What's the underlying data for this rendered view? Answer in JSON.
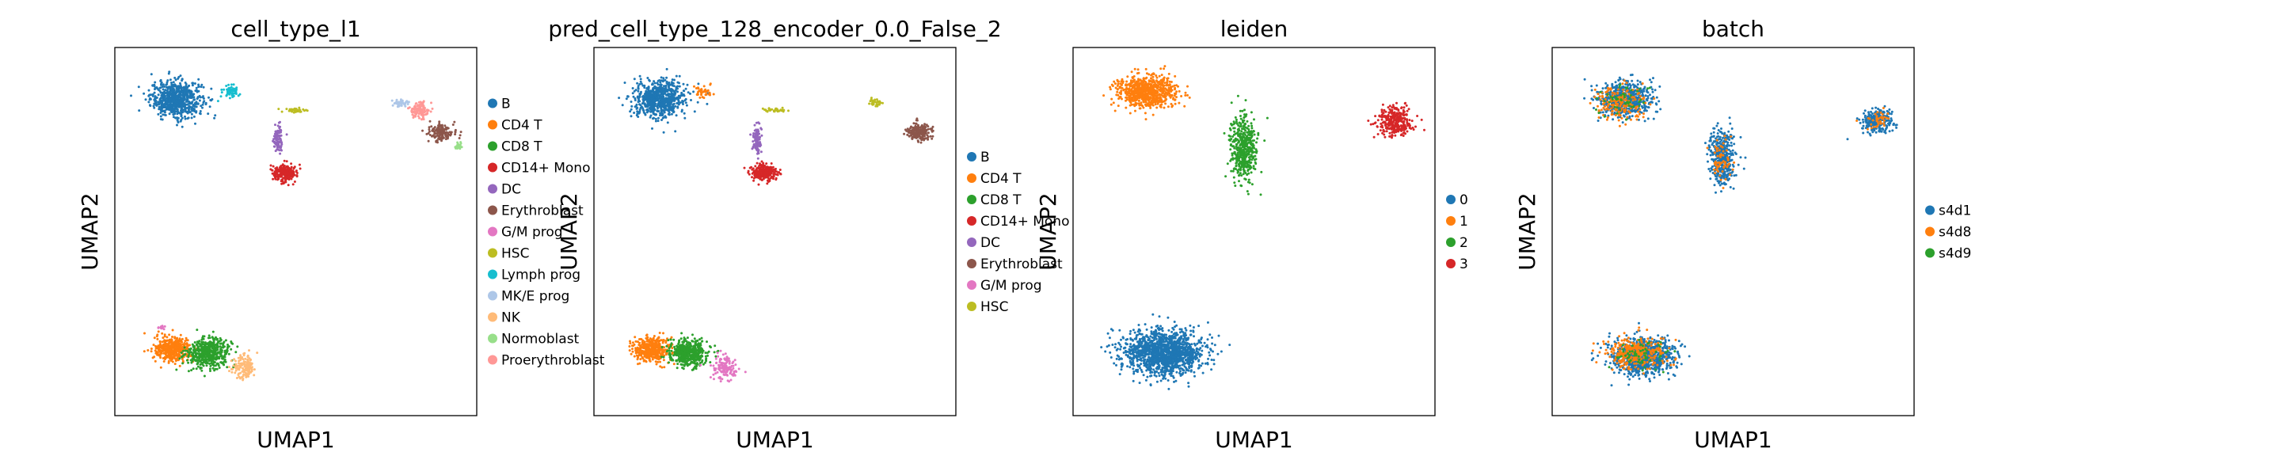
{
  "chart_data": [
    {
      "type": "scatter",
      "title": "cell_type_l1",
      "xlabel": "UMAP1",
      "ylabel": "UMAP2",
      "xlim": [
        0,
        10
      ],
      "ylim": [
        0,
        10
      ],
      "grid": false,
      "legend": "right",
      "legend_entries": [
        "B",
        "CD4 T",
        "CD8 T",
        "CD14+ Mono",
        "DC",
        "Erythroblast",
        "G/M prog",
        "HSC",
        "Lymph prog",
        "MK/E prog",
        "NK",
        "Normoblast",
        "Proerythroblast"
      ],
      "colors": [
        "#1f77b4",
        "#ff7f0e",
        "#2ca02c",
        "#d62728",
        "#9467bd",
        "#8c564b",
        "#e377c2",
        "#bcbd22",
        "#17becf",
        "#aec7e8",
        "#ffbb78",
        "#98df8a",
        "#ff9896"
      ],
      "series": [
        {
          "name": "B",
          "clusters": [
            {
              "cx": 1.7,
              "cy": 8.6,
              "sx": 0.65,
              "sy": 0.45,
              "n": 700
            }
          ]
        },
        {
          "name": "CD4 T",
          "clusters": [
            {
              "cx": 1.6,
              "cy": 1.8,
              "sx": 0.45,
              "sy": 0.3,
              "n": 420
            }
          ]
        },
        {
          "name": "CD8 T",
          "clusters": [
            {
              "cx": 2.6,
              "cy": 1.7,
              "sx": 0.55,
              "sy": 0.35,
              "n": 480
            }
          ]
        },
        {
          "name": "CD14+ Mono",
          "clusters": [
            {
              "cx": 4.7,
              "cy": 6.6,
              "sx": 0.3,
              "sy": 0.2,
              "n": 260
            }
          ]
        },
        {
          "name": "DC",
          "clusters": [
            {
              "cx": 4.5,
              "cy": 7.5,
              "sx": 0.12,
              "sy": 0.35,
              "n": 90
            }
          ]
        },
        {
          "name": "Erythroblast",
          "clusters": [
            {
              "cx": 9.0,
              "cy": 7.7,
              "sx": 0.3,
              "sy": 0.22,
              "n": 160
            }
          ]
        },
        {
          "name": "G/M prog",
          "clusters": [
            {
              "cx": 1.3,
              "cy": 2.4,
              "sx": 0.1,
              "sy": 0.05,
              "n": 15
            }
          ]
        },
        {
          "name": "HSC",
          "clusters": [
            {
              "cx": 5.0,
              "cy": 8.3,
              "sx": 0.3,
              "sy": 0.06,
              "n": 40
            }
          ]
        },
        {
          "name": "Lymph prog",
          "clusters": [
            {
              "cx": 3.2,
              "cy": 8.8,
              "sx": 0.2,
              "sy": 0.15,
              "n": 60
            }
          ]
        },
        {
          "name": "MK/E prog",
          "clusters": [
            {
              "cx": 7.9,
              "cy": 8.5,
              "sx": 0.25,
              "sy": 0.1,
              "n": 40
            }
          ]
        },
        {
          "name": "NK",
          "clusters": [
            {
              "cx": 3.6,
              "cy": 1.3,
              "sx": 0.3,
              "sy": 0.3,
              "n": 140
            }
          ]
        },
        {
          "name": "Normoblast",
          "clusters": [
            {
              "cx": 9.5,
              "cy": 7.3,
              "sx": 0.1,
              "sy": 0.1,
              "n": 25
            }
          ]
        },
        {
          "name": "Proerythroblast",
          "clusters": [
            {
              "cx": 8.4,
              "cy": 8.3,
              "sx": 0.25,
              "sy": 0.2,
              "n": 120
            }
          ]
        }
      ]
    },
    {
      "type": "scatter",
      "title": "pred_cell_type_128_encoder_0.0_False_2",
      "xlabel": "UMAP1",
      "ylabel": "UMAP2",
      "xlim": [
        0,
        10
      ],
      "ylim": [
        0,
        10
      ],
      "grid": false,
      "legend": "right",
      "legend_entries": [
        "B",
        "CD4 T",
        "CD8 T",
        "CD14+ Mono",
        "DC",
        "Erythroblast",
        "G/M prog",
        "HSC"
      ],
      "colors": [
        "#1f77b4",
        "#ff7f0e",
        "#2ca02c",
        "#d62728",
        "#9467bd",
        "#8c564b",
        "#e377c2",
        "#bcbd22"
      ],
      "series": [
        {
          "name": "B",
          "clusters": [
            {
              "cx": 1.8,
              "cy": 8.6,
              "sx": 0.65,
              "sy": 0.45,
              "n": 700
            }
          ]
        },
        {
          "name": "CD4 T",
          "clusters": [
            {
              "cx": 1.6,
              "cy": 1.8,
              "sx": 0.45,
              "sy": 0.3,
              "n": 420
            },
            {
              "cx": 3.0,
              "cy": 8.8,
              "sx": 0.2,
              "sy": 0.15,
              "n": 40
            }
          ]
        },
        {
          "name": "CD8 T",
          "clusters": [
            {
              "cx": 2.6,
              "cy": 1.7,
              "sx": 0.5,
              "sy": 0.35,
              "n": 480
            }
          ]
        },
        {
          "name": "CD14+ Mono",
          "clusters": [
            {
              "cx": 4.7,
              "cy": 6.6,
              "sx": 0.3,
              "sy": 0.2,
              "n": 260
            }
          ]
        },
        {
          "name": "DC",
          "clusters": [
            {
              "cx": 4.5,
              "cy": 7.5,
              "sx": 0.12,
              "sy": 0.35,
              "n": 90
            }
          ]
        },
        {
          "name": "Erythroblast",
          "clusters": [
            {
              "cx": 9.0,
              "cy": 7.7,
              "sx": 0.3,
              "sy": 0.22,
              "n": 200
            }
          ]
        },
        {
          "name": "G/M prog",
          "clusters": [
            {
              "cx": 3.6,
              "cy": 1.3,
              "sx": 0.3,
              "sy": 0.3,
              "n": 140
            }
          ]
        },
        {
          "name": "HSC",
          "clusters": [
            {
              "cx": 5.0,
              "cy": 8.3,
              "sx": 0.3,
              "sy": 0.06,
              "n": 40
            },
            {
              "cx": 7.8,
              "cy": 8.5,
              "sx": 0.2,
              "sy": 0.1,
              "n": 30
            }
          ]
        }
      ]
    },
    {
      "type": "scatter",
      "title": "leiden",
      "xlabel": "UMAP1",
      "ylabel": "UMAP2",
      "xlim": [
        0,
        10
      ],
      "ylim": [
        0,
        10
      ],
      "grid": false,
      "legend": "right",
      "legend_entries": [
        "0",
        "1",
        "2",
        "3"
      ],
      "colors": [
        "#1f77b4",
        "#ff7f0e",
        "#2ca02c",
        "#d62728"
      ],
      "series": [
        {
          "name": "0",
          "clusters": [
            {
              "cx": 2.5,
              "cy": 1.7,
              "sx": 1.0,
              "sy": 0.55,
              "n": 1400
            }
          ]
        },
        {
          "name": "1",
          "clusters": [
            {
              "cx": 2.0,
              "cy": 8.8,
              "sx": 0.75,
              "sy": 0.4,
              "n": 750
            }
          ]
        },
        {
          "name": "2",
          "clusters": [
            {
              "cx": 4.7,
              "cy": 7.3,
              "sx": 0.35,
              "sy": 0.75,
              "n": 450
            }
          ]
        },
        {
          "name": "3",
          "clusters": [
            {
              "cx": 8.9,
              "cy": 8.0,
              "sx": 0.45,
              "sy": 0.35,
              "n": 320
            }
          ]
        }
      ]
    },
    {
      "type": "scatter",
      "title": "batch",
      "xlabel": "UMAP1",
      "ylabel": "UMAP2",
      "xlim": [
        0,
        10
      ],
      "ylim": [
        0,
        10
      ],
      "grid": false,
      "legend": "right",
      "legend_entries": [
        "s4d1",
        "s4d8",
        "s4d9"
      ],
      "colors": [
        "#1f77b4",
        "#ff7f0e",
        "#2ca02c"
      ],
      "series": [
        {
          "name": "s4d1",
          "clusters": [
            {
              "cx": 2.0,
              "cy": 8.6,
              "sx": 0.7,
              "sy": 0.45,
              "n": 600
            },
            {
              "cx": 2.5,
              "cy": 1.6,
              "sx": 0.8,
              "sy": 0.45,
              "n": 900
            },
            {
              "cx": 4.7,
              "cy": 7.0,
              "sx": 0.3,
              "sy": 0.7,
              "n": 380
            },
            {
              "cx": 9.0,
              "cy": 8.0,
              "sx": 0.4,
              "sy": 0.3,
              "n": 260
            }
          ]
        },
        {
          "name": "s4d8",
          "clusters": [
            {
              "cx": 1.9,
              "cy": 8.5,
              "sx": 0.6,
              "sy": 0.4,
              "n": 180
            },
            {
              "cx": 2.3,
              "cy": 1.7,
              "sx": 0.7,
              "sy": 0.4,
              "n": 320
            },
            {
              "cx": 4.7,
              "cy": 7.0,
              "sx": 0.25,
              "sy": 0.6,
              "n": 60
            },
            {
              "cx": 9.0,
              "cy": 8.0,
              "sx": 0.35,
              "sy": 0.25,
              "n": 40
            }
          ]
        },
        {
          "name": "s4d9",
          "clusters": [
            {
              "cx": 2.0,
              "cy": 8.6,
              "sx": 0.6,
              "sy": 0.4,
              "n": 50
            },
            {
              "cx": 2.4,
              "cy": 1.7,
              "sx": 0.7,
              "sy": 0.4,
              "n": 60
            }
          ]
        }
      ]
    }
  ]
}
